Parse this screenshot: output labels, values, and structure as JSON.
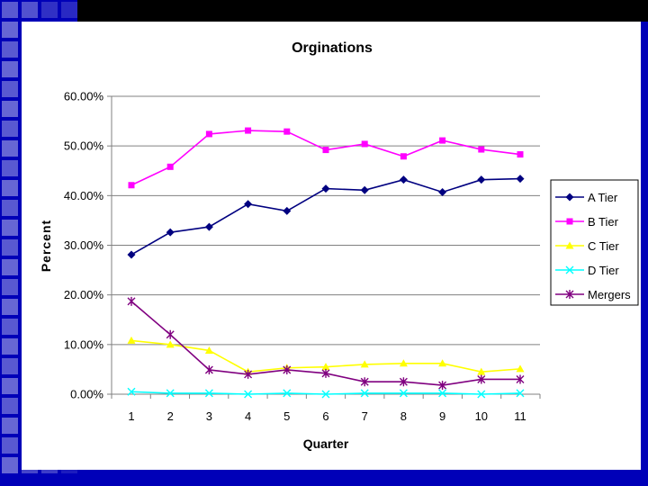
{
  "colors": {
    "background_blue": "#0000b8",
    "panel": "#ffffff"
  },
  "chart_data": {
    "type": "line",
    "title": "Orginations",
    "xlabel": "Quarter",
    "ylabel": "Percent",
    "x": [
      1,
      2,
      3,
      4,
      5,
      6,
      7,
      8,
      9,
      10,
      11
    ],
    "x_tick_labels": [
      "1",
      "2",
      "3",
      "4",
      "5",
      "6",
      "7",
      "8",
      "9",
      "10",
      "11"
    ],
    "ylim": [
      0,
      0.6
    ],
    "y_ticks": [
      0,
      0.1,
      0.2,
      0.3,
      0.4,
      0.5,
      0.6
    ],
    "y_tick_labels": [
      "0.00%",
      "10.00%",
      "20.00%",
      "30.00%",
      "40.00%",
      "50.00%",
      "60.00%"
    ],
    "grid": "horizontal",
    "legend_position": "right",
    "series": [
      {
        "name": "A Tier",
        "color": "#000080",
        "marker": "diamond",
        "values": [
          0.281,
          0.326,
          0.337,
          0.383,
          0.369,
          0.414,
          0.411,
          0.432,
          0.407,
          0.432,
          0.434
        ]
      },
      {
        "name": "B Tier",
        "color": "#ff00ff",
        "marker": "square",
        "values": [
          0.421,
          0.458,
          0.524,
          0.531,
          0.529,
          0.492,
          0.504,
          0.479,
          0.511,
          0.493,
          0.483
        ]
      },
      {
        "name": "C Tier",
        "color": "#ffff00",
        "marker": "triangle",
        "values": [
          0.108,
          0.1,
          0.088,
          0.045,
          0.053,
          0.055,
          0.06,
          0.062,
          0.062,
          0.045,
          0.051
        ]
      },
      {
        "name": "D Tier",
        "color": "#00ffff",
        "marker": "x",
        "values": [
          0.005,
          0.002,
          0.002,
          0.0,
          0.002,
          0.0,
          0.002,
          0.002,
          0.002,
          0.0,
          0.002
        ]
      },
      {
        "name": "Mergers",
        "color": "#800080",
        "marker": "star",
        "values": [
          0.187,
          0.12,
          0.049,
          0.04,
          0.049,
          0.042,
          0.025,
          0.025,
          0.018,
          0.03,
          0.03
        ]
      }
    ]
  }
}
